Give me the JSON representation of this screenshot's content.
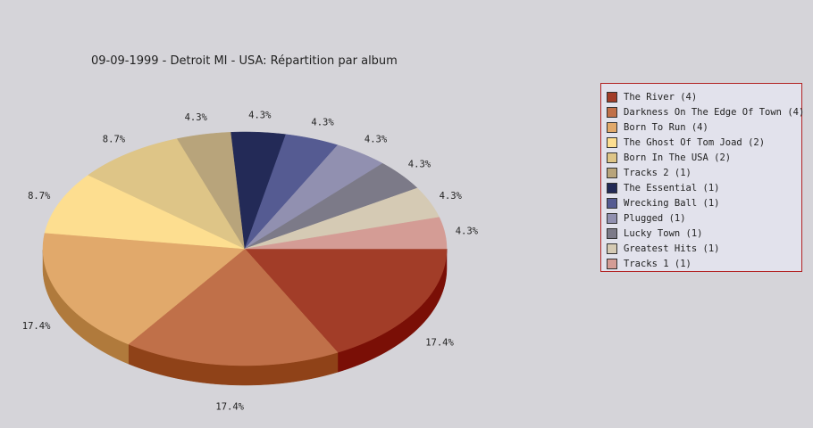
{
  "chart_data": {
    "type": "pie",
    "title": "09-09-1999 - Detroit MI - USA:  Répartition par album",
    "slices": [
      {
        "label": "The River (4)",
        "value": 4,
        "pct_label": "17.4%",
        "color": "#a23d28",
        "side": "#7a0f06"
      },
      {
        "label": "Darkness On The Edge Of Town (4)",
        "value": 4,
        "pct_label": "17.4%",
        "color": "#c07049",
        "side": "#8f4218"
      },
      {
        "label": "Born To Run (4)",
        "value": 4,
        "pct_label": "17.4%",
        "color": "#e1a96b",
        "side": "#b07a3c"
      },
      {
        "label": "The Ghost Of Tom Joad (2)",
        "value": 2,
        "pct_label": "8.7%",
        "color": "#fdde90",
        "side": "#c8a85c"
      },
      {
        "label": "Born In The USA (2)",
        "value": 2,
        "pct_label": "8.7%",
        "color": "#dec587",
        "side": "#a8925a"
      },
      {
        "label": "Tracks 2 (1)",
        "value": 1,
        "pct_label": "4.3%",
        "color": "#b8a47b",
        "side": "#877550"
      },
      {
        "label": "The Essential (1)",
        "value": 1,
        "pct_label": "4.3%",
        "color": "#232a57",
        "side": "#12163a"
      },
      {
        "label": "Wrecking Ball (1)",
        "value": 1,
        "pct_label": "4.3%",
        "color": "#555b92",
        "side": "#363b69"
      },
      {
        "label": "Plugged (1)",
        "value": 1,
        "pct_label": "4.3%",
        "color": "#9190b0",
        "side": "#65648a"
      },
      {
        "label": "Lucky Town (1)",
        "value": 1,
        "pct_label": "4.3%",
        "color": "#7c7a88",
        "side": "#55535f"
      },
      {
        "label": "Greatest Hits (1)",
        "value": 1,
        "pct_label": "4.3%",
        "color": "#d5cab4",
        "side": "#a99e88"
      },
      {
        "label": "Tracks 1 (1)",
        "value": 1,
        "pct_label": "4.3%",
        "color": "#d49c95",
        "side": "#a46e68"
      }
    ],
    "legend_position": "right"
  }
}
